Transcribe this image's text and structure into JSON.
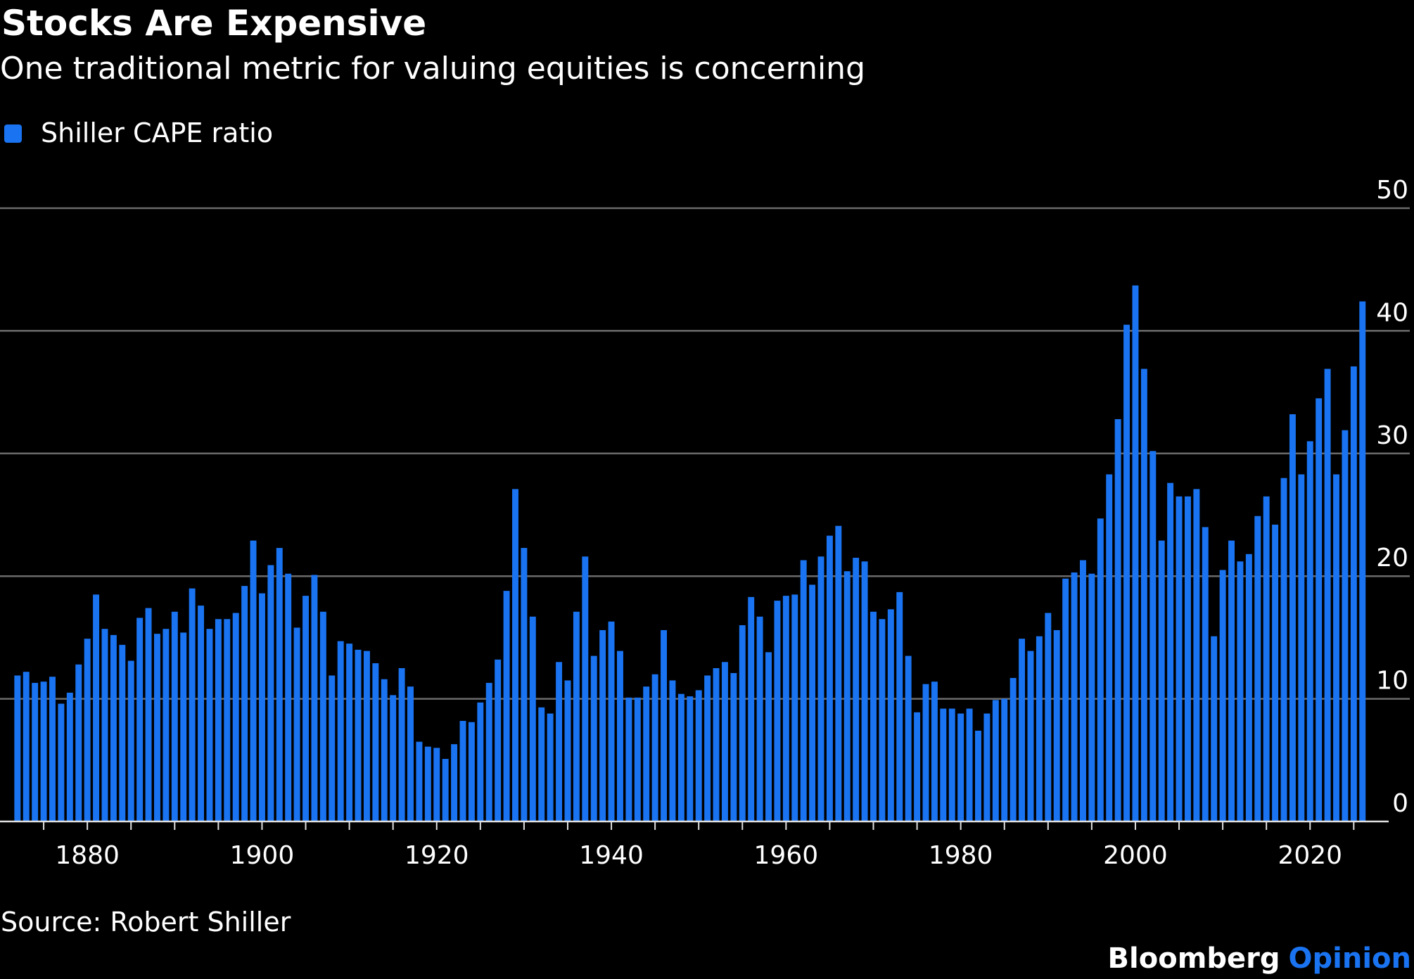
{
  "chart_data": {
    "type": "bar",
    "title": "Stocks Are Expensive",
    "subtitle": "One traditional metric for valuing equities is concerning",
    "source": "Source: Robert Shiller",
    "credit": [
      "Bloomberg",
      "Opinion"
    ],
    "credit_colors": [
      "#ffffff",
      "#1a73f0"
    ],
    "x": [
      1872,
      1873,
      1874,
      1875,
      1876,
      1877,
      1878,
      1879,
      1880,
      1881,
      1882,
      1883,
      1884,
      1885,
      1886,
      1887,
      1888,
      1889,
      1890,
      1891,
      1892,
      1893,
      1894,
      1895,
      1896,
      1897,
      1898,
      1899,
      1900,
      1901,
      1902,
      1903,
      1904,
      1905,
      1906,
      1907,
      1908,
      1909,
      1910,
      1911,
      1912,
      1913,
      1914,
      1915,
      1916,
      1917,
      1918,
      1919,
      1920,
      1921,
      1922,
      1923,
      1924,
      1925,
      1926,
      1927,
      1928,
      1929,
      1930,
      1931,
      1932,
      1933,
      1934,
      1935,
      1936,
      1937,
      1938,
      1939,
      1940,
      1941,
      1942,
      1943,
      1944,
      1945,
      1946,
      1947,
      1948,
      1949,
      1950,
      1951,
      1952,
      1953,
      1954,
      1955,
      1956,
      1957,
      1958,
      1959,
      1960,
      1961,
      1962,
      1963,
      1964,
      1965,
      1966,
      1967,
      1968,
      1969,
      1970,
      1971,
      1972,
      1973,
      1974,
      1975,
      1976,
      1977,
      1978,
      1979,
      1980,
      1981,
      1982,
      1983,
      1984,
      1985,
      1986,
      1987,
      1988,
      1989,
      1990,
      1991,
      1992,
      1993,
      1994,
      1995,
      1996,
      1997,
      1998,
      1999,
      2000,
      2001,
      2002,
      2003,
      2004,
      2005,
      2006,
      2007,
      2008,
      2009,
      2010,
      2011,
      2012,
      2013,
      2014,
      2015,
      2016,
      2017,
      2018,
      2019,
      2020,
      2021,
      2022,
      2023,
      2024,
      2025,
      2026
    ],
    "series": [
      {
        "name": "Shiller CAPE ratio",
        "color": "#1a73f0",
        "values": [
          11.9,
          12.2,
          11.3,
          11.4,
          11.8,
          9.6,
          10.5,
          12.8,
          14.9,
          18.5,
          15.7,
          15.2,
          14.4,
          13.1,
          16.6,
          17.4,
          15.3,
          15.7,
          17.1,
          15.4,
          19.0,
          17.6,
          15.7,
          16.5,
          16.5,
          17.0,
          19.2,
          22.9,
          18.6,
          20.9,
          22.3,
          20.2,
          15.8,
          18.4,
          20.1,
          17.1,
          11.9,
          14.7,
          14.5,
          14.0,
          13.9,
          12.9,
          11.6,
          10.3,
          12.5,
          11.0,
          6.5,
          6.1,
          6.0,
          5.1,
          6.3,
          8.2,
          8.1,
          9.7,
          11.3,
          13.2,
          18.8,
          27.1,
          22.3,
          16.7,
          9.3,
          8.8,
          13.0,
          11.5,
          17.1,
          21.6,
          13.5,
          15.6,
          16.3,
          13.9,
          10.1,
          10.1,
          11.0,
          12.0,
          15.6,
          11.5,
          10.4,
          10.2,
          10.7,
          11.9,
          12.5,
          13.0,
          12.1,
          16.0,
          18.3,
          16.7,
          13.8,
          18.0,
          18.4,
          18.5,
          21.3,
          19.3,
          21.6,
          23.3,
          24.1,
          20.4,
          21.5,
          21.2,
          17.1,
          16.5,
          17.3,
          18.7,
          13.5,
          8.9,
          11.2,
          11.4,
          9.2,
          9.2,
          8.8,
          9.2,
          7.4,
          8.8,
          9.9,
          10.0,
          11.7,
          14.9,
          13.9,
          15.1,
          17.0,
          15.6,
          19.8,
          20.3,
          21.3,
          20.2,
          24.7,
          28.3,
          32.8,
          40.5,
          43.7,
          36.9,
          30.2,
          22.9,
          27.6,
          26.5,
          26.5,
          27.1,
          24.0,
          15.1,
          20.5,
          22.9,
          21.2,
          21.8,
          24.9,
          26.5,
          24.2,
          28.0,
          33.2,
          28.3,
          31.0,
          34.5,
          36.9,
          28.3,
          31.9,
          37.1,
          42.4
        ]
      }
    ],
    "xlim": [
      1870,
      2029
    ],
    "xticks": [
      1880,
      1900,
      1920,
      1940,
      1960,
      1980,
      2000,
      2020
    ],
    "xminorticks": [
      1875,
      1880,
      1885,
      1890,
      1895,
      1900,
      1905,
      1910,
      1915,
      1920,
      1925,
      1930,
      1935,
      1940,
      1945,
      1950,
      1955,
      1960,
      1965,
      1970,
      1975,
      1980,
      1985,
      1990,
      1995,
      2000,
      2005,
      2010,
      2015,
      2020,
      2025
    ],
    "ylim": [
      0,
      50
    ],
    "yticks": [
      0,
      10,
      20,
      30,
      40,
      50
    ],
    "grid": true,
    "legend": "top-left"
  }
}
